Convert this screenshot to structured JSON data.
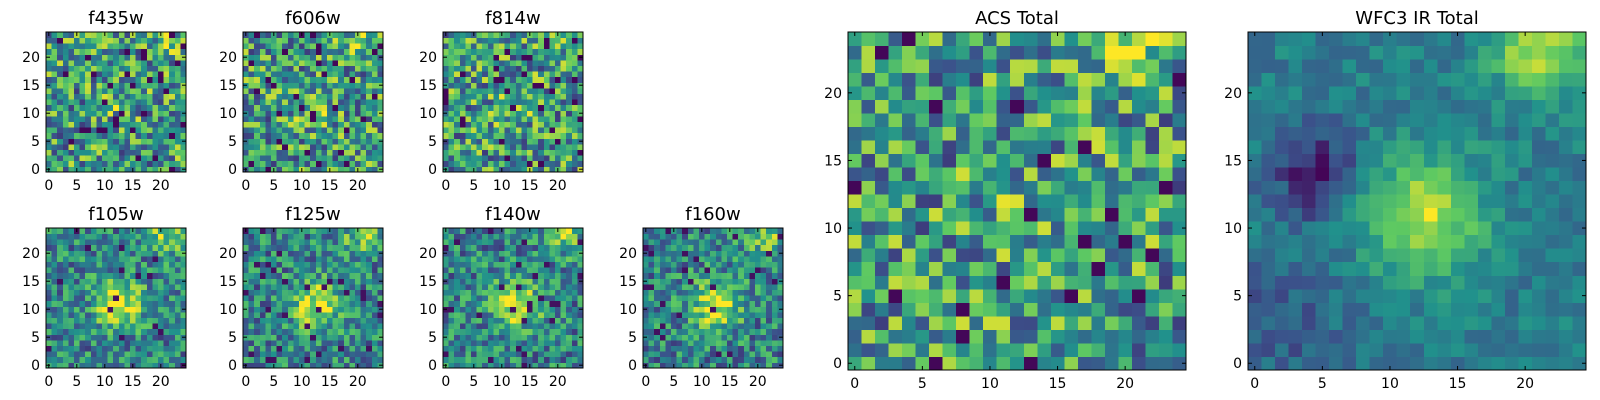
{
  "figure_title": "",
  "colormap": [
    "#440154",
    "#3b528b",
    "#21918c",
    "#5ec962",
    "#fde725"
  ],
  "chart_data": [
    {
      "type": "heatmap",
      "title": "f435w",
      "grid_size": 25,
      "xlim": [
        0,
        24
      ],
      "ylim": [
        0,
        24
      ],
      "x_ticks": [
        0,
        5,
        10,
        15,
        20
      ],
      "y_ticks": [
        0,
        5,
        10,
        15,
        20
      ],
      "pattern": "noise",
      "seed": 11
    },
    {
      "type": "heatmap",
      "title": "f606w",
      "grid_size": 25,
      "xlim": [
        0,
        24
      ],
      "ylim": [
        0,
        24
      ],
      "x_ticks": [
        0,
        5,
        10,
        15,
        20
      ],
      "y_ticks": [
        0,
        5,
        10,
        15,
        20
      ],
      "pattern": "noise",
      "seed": 23
    },
    {
      "type": "heatmap",
      "title": "f814w",
      "grid_size": 25,
      "xlim": [
        0,
        24
      ],
      "ylim": [
        0,
        24
      ],
      "x_ticks": [
        0,
        5,
        10,
        15,
        20
      ],
      "y_ticks": [
        0,
        5,
        10,
        15,
        20
      ],
      "pattern": "noise",
      "seed": 37
    },
    {
      "type": "heatmap",
      "title": "f105w",
      "grid_size": 25,
      "xlim": [
        0,
        24
      ],
      "ylim": [
        0,
        24
      ],
      "x_ticks": [
        0,
        5,
        10,
        15,
        20
      ],
      "y_ticks": [
        0,
        5,
        10,
        15,
        20
      ],
      "pattern": "source",
      "seed": 41
    },
    {
      "type": "heatmap",
      "title": "f125w",
      "grid_size": 25,
      "xlim": [
        0,
        24
      ],
      "ylim": [
        0,
        24
      ],
      "x_ticks": [
        0,
        5,
        10,
        15,
        20
      ],
      "y_ticks": [
        0,
        5,
        10,
        15,
        20
      ],
      "pattern": "source",
      "seed": 53
    },
    {
      "type": "heatmap",
      "title": "f140w",
      "grid_size": 25,
      "xlim": [
        0,
        24
      ],
      "ylim": [
        0,
        24
      ],
      "x_ticks": [
        0,
        5,
        10,
        15,
        20
      ],
      "y_ticks": [
        0,
        5,
        10,
        15,
        20
      ],
      "pattern": "source",
      "seed": 67
    },
    {
      "type": "heatmap",
      "title": "f160w",
      "grid_size": 25,
      "xlim": [
        0,
        24
      ],
      "ylim": [
        0,
        24
      ],
      "x_ticks": [
        0,
        5,
        10,
        15,
        20
      ],
      "y_ticks": [
        0,
        5,
        10,
        15,
        20
      ],
      "pattern": "source",
      "seed": 79
    },
    {
      "type": "heatmap",
      "title": "ACS Total",
      "grid_size": 25,
      "xlim": [
        0,
        24
      ],
      "ylim": [
        0,
        24
      ],
      "x_ticks": [
        0,
        5,
        10,
        15,
        20
      ],
      "y_ticks": [
        0,
        5,
        10,
        15,
        20
      ],
      "pattern": "noise",
      "seed": 97
    },
    {
      "type": "heatmap",
      "title": "WFC3 IR Total",
      "grid_size": 25,
      "xlim": [
        0,
        24
      ],
      "ylim": [
        0,
        24
      ],
      "x_ticks": [
        0,
        5,
        10,
        15,
        20
      ],
      "y_ticks": [
        0,
        5,
        10,
        15,
        20
      ],
      "pattern": "smooth",
      "seed": 103
    }
  ]
}
